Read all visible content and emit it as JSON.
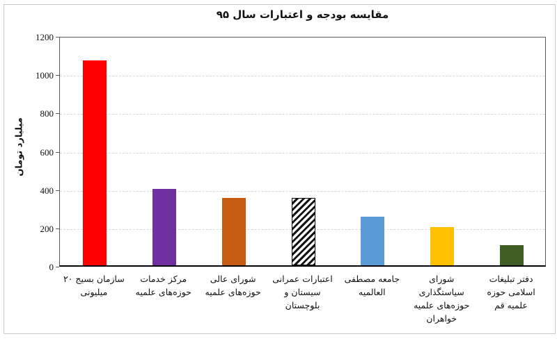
{
  "chart_data": {
    "type": "bar",
    "title": "مقايسه بودجه و اعتبارات سال ۹۵",
    "xlabel": "",
    "ylabel": "ميليارد تومان",
    "ylim": [
      0,
      1200
    ],
    "ytick_step": 200,
    "ytick_labels": [
      "0",
      "200",
      "400",
      "600",
      "800",
      "1000",
      "1200"
    ],
    "grid": "horizontal-dashed",
    "legend": "none",
    "categories": [
      "سازمان بسيج ۲۰ ميليونى",
      "مركز خدمات حوزه‌هاى علميه",
      "شوراى عالى حوزه‌هاى علميه",
      "اعتبارات عمرانى سيستان و بلوچستان",
      "جامعه مصطفى العالميه",
      "شوراى سياستگذارى حوزه‌هاى علميه خواهران",
      "دفتر تبليغات اسلامى حوزه علميه قم"
    ],
    "category_lines": [
      [
        "سازمان بسيج ۲۰",
        "ميليونى"
      ],
      [
        "مركز خدمات",
        "حوزه‌هاى علميه"
      ],
      [
        "شوراى عالى",
        "حوزه‌هاى علميه"
      ],
      [
        "اعتبارات عمرانى",
        "سيستان و",
        "بلوچستان"
      ],
      [
        "جامعه مصطفى",
        "العالميه"
      ],
      [
        "شوراى",
        "سياستگذارى",
        "حوزه‌هاى علميه",
        "خواهران"
      ],
      [
        "دفتر تبليغات",
        "اسلامى حوزه",
        "علميه قم"
      ]
    ],
    "values": [
      1070,
      400,
      350,
      350,
      255,
      200,
      105
    ],
    "bar_colors": [
      "#FF0000",
      "#7030A0",
      "#C55A11",
      "hatch",
      "#5B9BD5",
      "#FFC000",
      "#3E5E23"
    ],
    "hatch_style": {
      "pattern": "diagonal-stripes",
      "fg": "#141414",
      "bg": "#ffffff"
    }
  },
  "colors": {
    "background": "#ffffff",
    "plot_border": "#595959",
    "axis_line": "#000000",
    "gridline": "#d9d9d9",
    "text": "#111111",
    "outer_border": "#c9c9c9"
  }
}
